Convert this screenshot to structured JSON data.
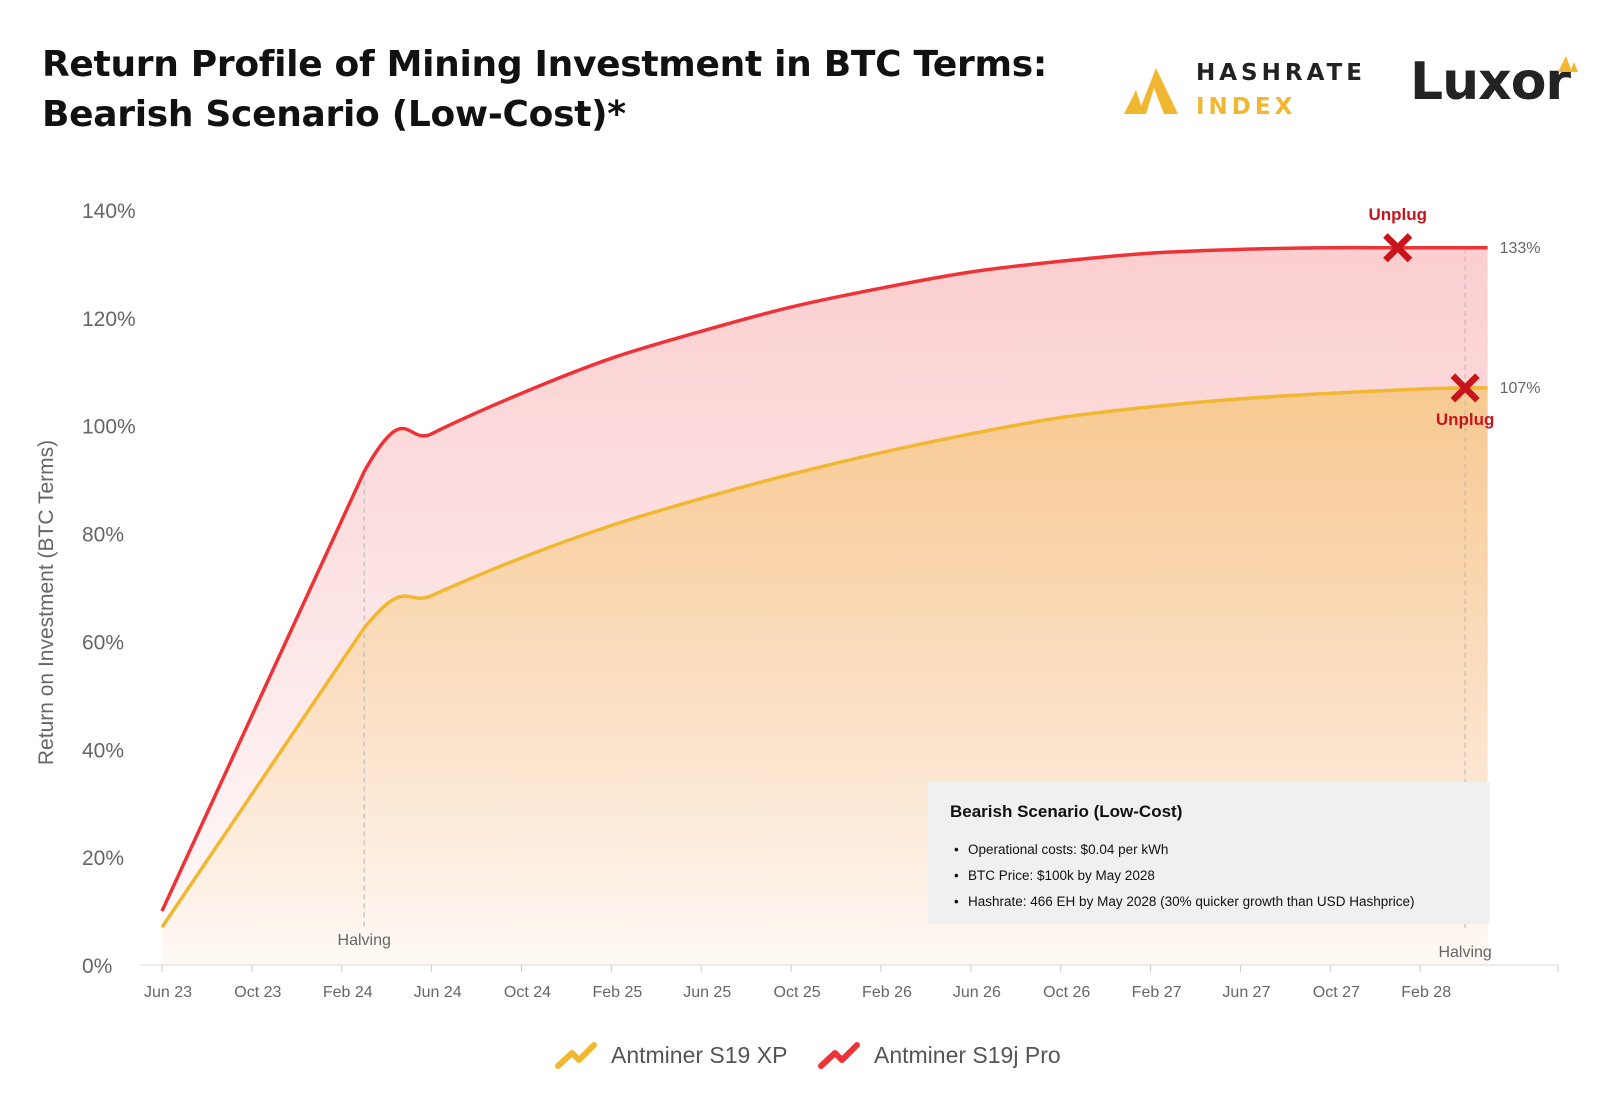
{
  "title": {
    "line1": "Return Profile of Mining Investment in BTC Terms:",
    "line2": "Bearish Scenario (Low-Cost)*"
  },
  "logos": {
    "hashrate_index": {
      "line1": "HASHRATE",
      "line2": "INDEX"
    },
    "luxor": "Luxor"
  },
  "colors": {
    "s19xp": "#f2b731",
    "s19j_pro": "#ee3338",
    "unplug_marker": "#c8151b",
    "axis_text": "#666666",
    "grid": "#e6e6e6"
  },
  "chart_data": {
    "type": "area",
    "ylabel": "Return on Investment (BTC Terms)",
    "xlabel": "",
    "x_unit": "months since Jun 2023",
    "xlim": [
      0,
      62
    ],
    "ylim": [
      0,
      140
    ],
    "y_ticks": [
      0,
      20,
      40,
      60,
      80,
      100,
      120,
      140
    ],
    "y_tick_labels": [
      "0%",
      "20%",
      "40%",
      "60%",
      "80%",
      "100%",
      "120%",
      "140%"
    ],
    "x_ticks": [
      0,
      4,
      8,
      12,
      16,
      20,
      24,
      28,
      32,
      36,
      40,
      44,
      48,
      52,
      56
    ],
    "x_tick_labels": [
      "Jun 23",
      "Oct 23",
      "Feb 24",
      "Jun 24",
      "Oct 24",
      "Feb 25",
      "Jun 25",
      "Oct 25",
      "Feb 26",
      "Jun 26",
      "Oct 26",
      "Feb 27",
      "Jun 27",
      "Oct 27",
      "Feb 28"
    ],
    "series": [
      {
        "name": "Antminer S19 XP",
        "color": "#f2b731",
        "x": [
          0,
          9,
          12,
          16,
          20,
          24,
          28,
          32,
          36,
          40,
          44,
          48,
          52,
          56,
          58,
          59
        ],
        "y": [
          7,
          62.5,
          68.5,
          75.5,
          81.5,
          86.5,
          91,
          95,
          98.5,
          101.5,
          103.5,
          105,
          106,
          106.8,
          107,
          107
        ],
        "end_label": "107%",
        "unplug": {
          "x": 58,
          "y": 107,
          "label": "Unplug"
        }
      },
      {
        "name": "Antminer S19j Pro",
        "color": "#ee3338",
        "x": [
          0,
          9,
          12,
          16,
          20,
          24,
          28,
          32,
          36,
          40,
          44,
          48,
          52,
          55,
          59
        ],
        "y": [
          10,
          91.5,
          98.5,
          106,
          112.5,
          117.5,
          122,
          125.5,
          128.5,
          130.5,
          132,
          132.7,
          133,
          133,
          133
        ],
        "end_label": "133%",
        "unplug": {
          "x": 55,
          "y": 133,
          "label": "Unplug"
        }
      }
    ],
    "annotations": [
      {
        "type": "vline",
        "x": 9,
        "label": "Halving"
      },
      {
        "type": "vline",
        "x": 58,
        "label": "Halving"
      }
    ],
    "legend": [
      "Antminer S19 XP",
      "Antminer S19j Pro"
    ]
  },
  "info_box": {
    "title": "Bearish Scenario (Low-Cost)",
    "items": [
      "Operational costs: $0.04 per kWh",
      "BTC Price: $100k by May 2028",
      "Hashrate: 466 EH by May 2028 (30% quicker growth than USD Hashprice)"
    ]
  }
}
